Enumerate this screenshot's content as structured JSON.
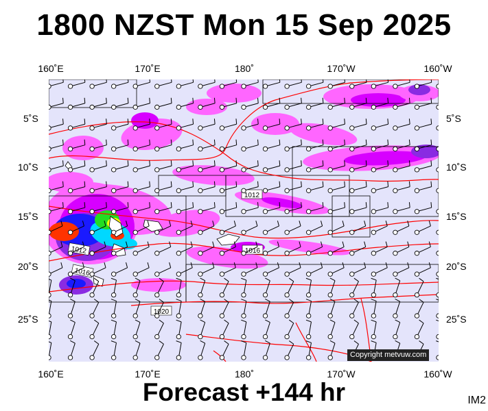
{
  "header": {
    "title": "1800 NZST Mon 15 Sep 2025"
  },
  "footer": {
    "forecast_label": "Forecast +144 hr",
    "image_code": "IM2"
  },
  "map": {
    "lon_labels": [
      "160˚E",
      "170˚E",
      "180˚",
      "170˚W",
      "160˚W"
    ],
    "lat_labels": [
      "5˚S",
      "10˚S",
      "15˚S",
      "20˚S",
      "25˚S"
    ],
    "pressure_labels": [
      "1012",
      "1012",
      "1016",
      "1016",
      "1020"
    ],
    "copyright": "Copyright metvuw.com",
    "colors": {
      "background": "#e4e4fb",
      "light_rain": "#ff66ff",
      "moderate_rain": "#d700ff",
      "heavy_rain": "#8a2be2",
      "very_heavy": "#1a1aff",
      "intense": "#00d8ff",
      "extreme_green": "#22dd22",
      "extreme_yellow": "#ffff00",
      "extreme_red": "#ff3300",
      "isobar": "#ff0000",
      "coast": "#000000"
    }
  }
}
